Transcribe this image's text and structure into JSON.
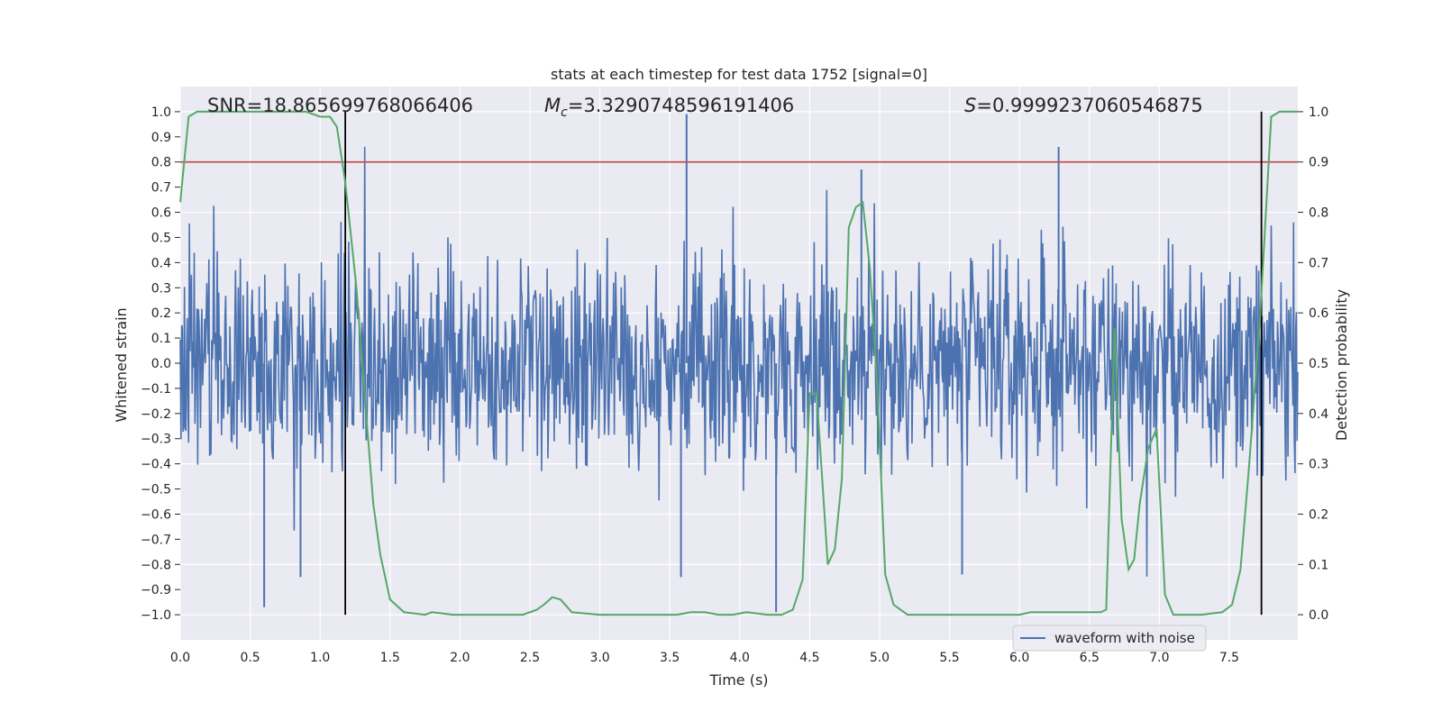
{
  "chart_data": {
    "type": "line",
    "title": "stats at each timestep for test data 1752 [signal=0]",
    "xlabel": "Time (s)",
    "ylabel": "Whitened strain",
    "y2label": "Detection probability",
    "xlim": [
      0.0,
      7.99
    ],
    "ylim": [
      -1.1,
      1.1
    ],
    "y2lim": [
      -0.05,
      1.05
    ],
    "xticks": [
      "0.0",
      "0.5",
      "1.0",
      "1.5",
      "2.0",
      "2.5",
      "3.0",
      "3.5",
      "4.0",
      "4.5",
      "5.0",
      "5.5",
      "6.0",
      "6.5",
      "7.0",
      "7.5"
    ],
    "xtick_values": [
      0.0,
      0.5,
      1.0,
      1.5,
      2.0,
      2.5,
      3.0,
      3.5,
      4.0,
      4.5,
      5.0,
      5.5,
      6.0,
      6.5,
      7.0,
      7.5
    ],
    "yticks": [
      "1.0",
      "0.9",
      "0.8",
      "0.7",
      "0.6",
      "0.5",
      "0.4",
      "0.3",
      "0.2",
      "0.1",
      "0.0",
      "−0.1",
      "−0.2",
      "−0.3",
      "−0.4",
      "−0.5",
      "−0.6",
      "−0.7",
      "−0.8",
      "−0.9",
      "−1.0"
    ],
    "ytick_values": [
      1.0,
      0.9,
      0.8,
      0.7,
      0.6,
      0.5,
      0.4,
      0.3,
      0.2,
      0.1,
      0.0,
      -0.1,
      -0.2,
      -0.3,
      -0.4,
      -0.5,
      -0.6,
      -0.7,
      -0.8,
      -0.9,
      -1.0
    ],
    "y2ticks": [
      "1.0",
      "0.9",
      "0.8",
      "0.7",
      "0.6",
      "0.5",
      "0.4",
      "0.3",
      "0.2",
      "0.1",
      "0.0"
    ],
    "y2tick_values": [
      1.0,
      0.9,
      0.8,
      0.7,
      0.6,
      0.5,
      0.4,
      0.3,
      0.2,
      0.1,
      0.0
    ],
    "annotations": {
      "snr": "SNR=18.865699768066406",
      "mc_symbol": "M",
      "mc_sub": "c",
      "mc_value": "=3.3290748596191406",
      "s_symbol": "S",
      "s_value": "=0.9999237060546875"
    },
    "legend": {
      "label": "waveform with noise",
      "placement": "lower-right"
    },
    "threshold": {
      "value": 0.9,
      "axis": "right",
      "color": "#c44e52"
    },
    "vlines": [
      1.18,
      7.73
    ],
    "waveform": {
      "name": "waveform with noise",
      "color": "#4c72b0",
      "n_samples": 1600,
      "typical_amplitude": 0.45,
      "notable_peaks": [
        {
          "t": 3.62,
          "v": 0.99
        },
        {
          "t": 4.26,
          "v": -0.99
        },
        {
          "t": 0.6,
          "v": -0.97
        },
        {
          "t": 6.28,
          "v": 0.86
        },
        {
          "t": 3.58,
          "v": -0.85
        },
        {
          "t": 5.59,
          "v": -0.84
        },
        {
          "t": 0.86,
          "v": -0.85
        },
        {
          "t": 4.87,
          "v": 0.77
        }
      ]
    },
    "series": [
      {
        "name": "detection probability",
        "color": "#55a868",
        "axis": "right",
        "x": [
          0.0,
          0.06,
          0.12,
          0.2,
          0.3,
          0.5,
          0.7,
          0.9,
          1.0,
          1.07,
          1.12,
          1.18,
          1.26,
          1.32,
          1.38,
          1.43,
          1.5,
          1.6,
          1.75,
          1.8,
          1.95,
          2.1,
          2.3,
          2.45,
          2.55,
          2.6,
          2.66,
          2.72,
          2.8,
          3.0,
          3.2,
          3.4,
          3.55,
          3.65,
          3.75,
          3.85,
          3.95,
          4.05,
          4.2,
          4.3,
          4.38,
          4.45,
          4.5,
          4.55,
          4.63,
          4.68,
          4.73,
          4.78,
          4.83,
          4.88,
          4.93,
          4.98,
          5.04,
          5.1,
          5.2,
          5.3,
          5.5,
          5.8,
          6.0,
          6.08,
          6.2,
          6.32,
          6.45,
          6.52,
          6.58,
          6.62,
          6.68,
          6.73,
          6.78,
          6.82,
          6.86,
          6.92,
          6.98,
          7.04,
          7.1,
          7.3,
          7.45,
          7.52,
          7.58,
          7.64,
          7.72,
          7.8,
          7.86,
          7.92,
          7.99
        ],
        "values": [
          0.82,
          0.99,
          1.0,
          1.0,
          1.0,
          1.0,
          1.0,
          1.0,
          0.99,
          0.99,
          0.97,
          0.86,
          0.65,
          0.43,
          0.22,
          0.12,
          0.03,
          0.005,
          0.0,
          0.005,
          0.0,
          0.0,
          0.0,
          0.0,
          0.01,
          0.02,
          0.035,
          0.03,
          0.005,
          0.0,
          0.0,
          0.0,
          0.0,
          0.005,
          0.005,
          0.0,
          0.0,
          0.005,
          0.0,
          0.0,
          0.01,
          0.07,
          0.44,
          0.44,
          0.1,
          0.13,
          0.27,
          0.77,
          0.81,
          0.82,
          0.69,
          0.47,
          0.08,
          0.02,
          0.0,
          0.0,
          0.0,
          0.0,
          0.0,
          0.005,
          0.005,
          0.005,
          0.005,
          0.005,
          0.005,
          0.01,
          0.57,
          0.19,
          0.09,
          0.11,
          0.22,
          0.33,
          0.37,
          0.04,
          0.0,
          0.0,
          0.005,
          0.02,
          0.09,
          0.29,
          0.59,
          0.99,
          1.0,
          1.0,
          1.0
        ]
      }
    ]
  }
}
